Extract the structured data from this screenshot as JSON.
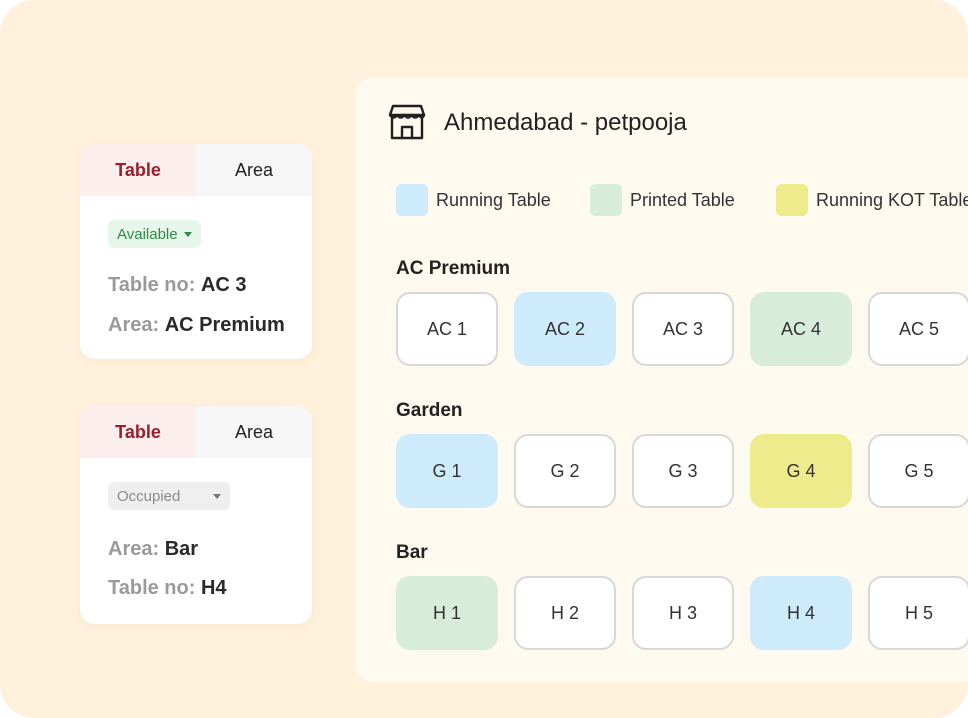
{
  "colors": {
    "background": "#fff1dc",
    "running_table": "#cdebfa",
    "printed_table": "#d8ecdc",
    "running_kot_table": "#eeeb8c",
    "active_tab_text": "#9b1f2a",
    "available_status": "#2e8b4a"
  },
  "cards": [
    {
      "tabs": [
        "Table",
        "Area"
      ],
      "active_tab": "Table",
      "status": "Available",
      "line1": {
        "label": "Table no:",
        "value": "AC 3"
      },
      "line2": {
        "label": "Area:",
        "value": "AC Premium"
      }
    },
    {
      "tabs": [
        "Table",
        "Area"
      ],
      "active_tab": "Table",
      "status": "Occupied",
      "line1": {
        "label": "Area:",
        "value": "Bar"
      },
      "line2": {
        "label": "Table no:",
        "value": "H4"
      }
    }
  ],
  "panel": {
    "icon": "store-icon",
    "title": "Ahmedabad - petpooja",
    "legend": [
      {
        "label": "Running Table",
        "status": "running"
      },
      {
        "label": "Printed Table",
        "status": "printed"
      },
      {
        "label": "Running KOT Table",
        "status": "kot"
      }
    ],
    "sections": [
      {
        "title": "AC Premium",
        "tables": [
          {
            "label": "AC 1",
            "status": "empty"
          },
          {
            "label": "AC 2",
            "status": "running"
          },
          {
            "label": "AC 3",
            "status": "empty"
          },
          {
            "label": "AC 4",
            "status": "printed"
          },
          {
            "label": "AC 5",
            "status": "empty"
          }
        ]
      },
      {
        "title": "Garden",
        "tables": [
          {
            "label": "G 1",
            "status": "running"
          },
          {
            "label": "G 2",
            "status": "empty"
          },
          {
            "label": "G 3",
            "status": "empty"
          },
          {
            "label": "G 4",
            "status": "kot"
          },
          {
            "label": "G 5",
            "status": "empty"
          }
        ]
      },
      {
        "title": "Bar",
        "tables": [
          {
            "label": "H 1",
            "status": "printed"
          },
          {
            "label": "H 2",
            "status": "empty"
          },
          {
            "label": "H 3",
            "status": "empty"
          },
          {
            "label": "H 4",
            "status": "running"
          },
          {
            "label": "H 5",
            "status": "empty"
          }
        ]
      }
    ]
  }
}
